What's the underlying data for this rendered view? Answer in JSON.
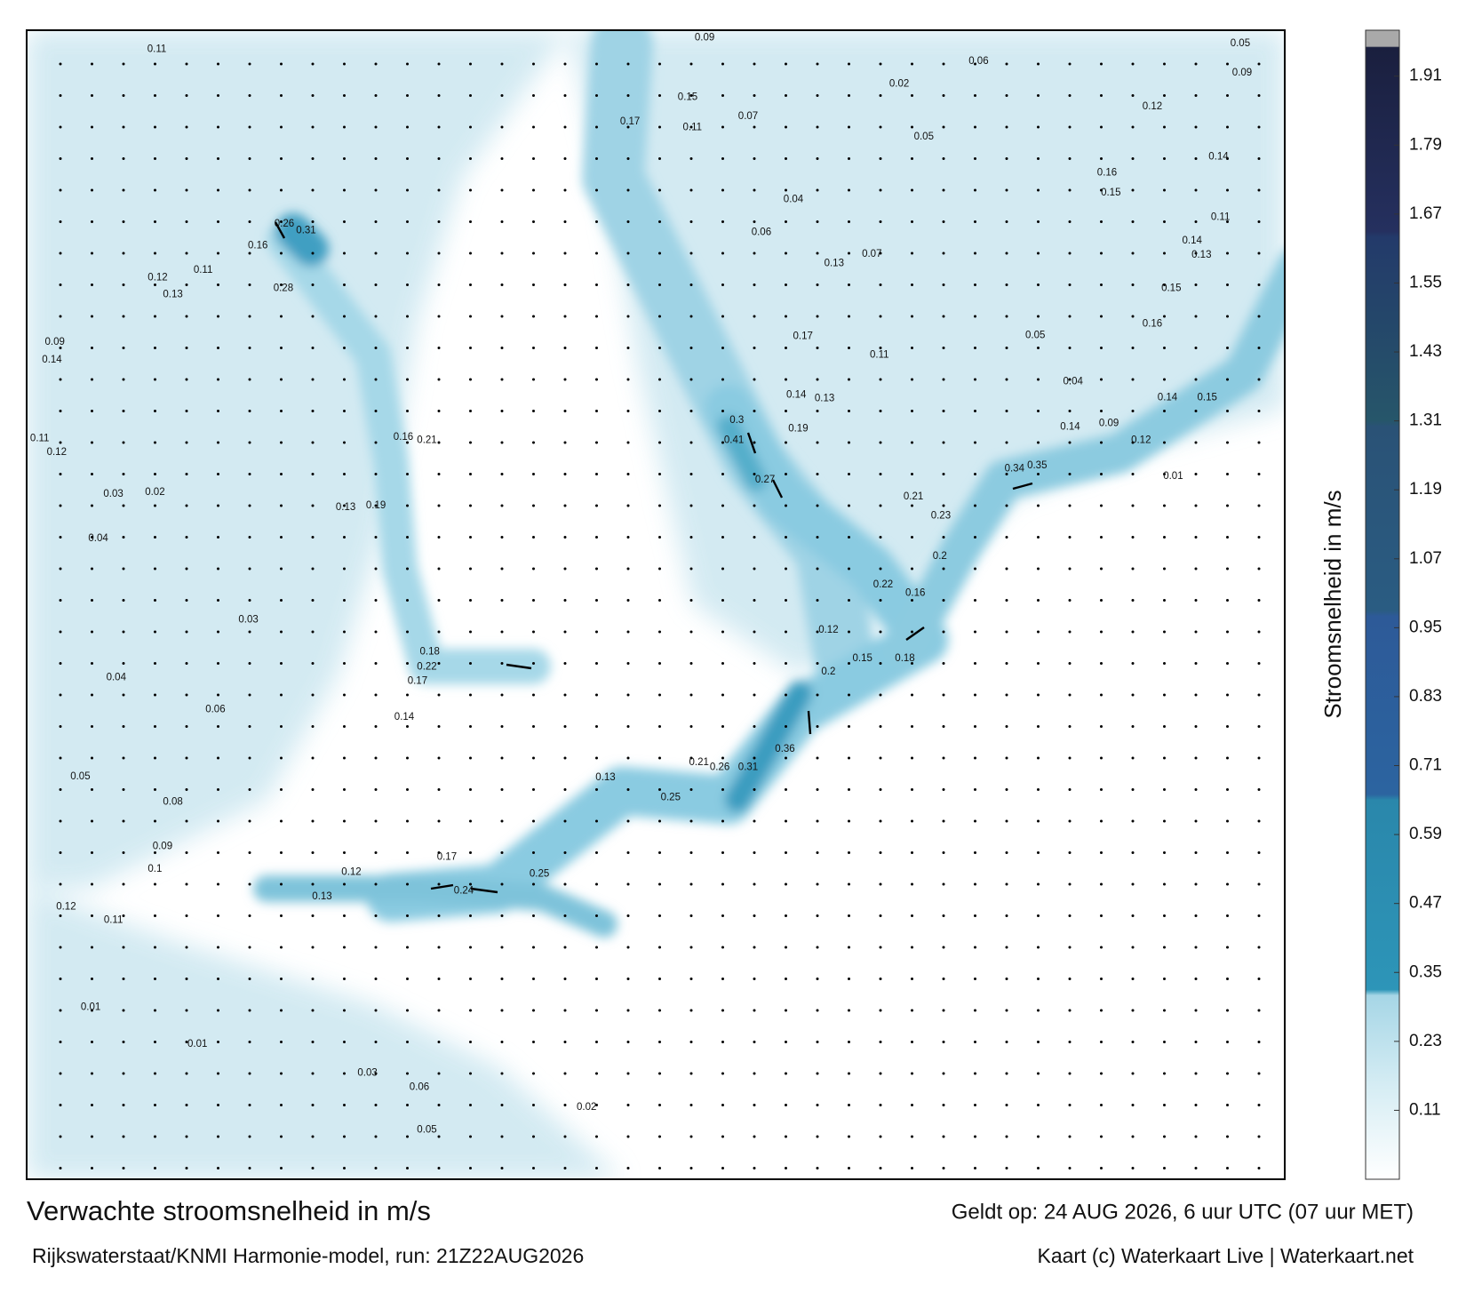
{
  "map": {
    "title": "Verwachte stroomsnelheid in m/s",
    "subtitle": "Rijkswaterstaat/KNMI Harmonie-model, run: 21Z22AUG2026",
    "valid_time": "Geldt op: 24 AUG 2026, 6 uur UTC (07 uur MET)",
    "credit": "Kaart (c) Waterkaart Live | Waterkaart.net",
    "colorbar": {
      "label": "Stroomsnelheid in m/s",
      "lim": [
        -0.01,
        1.99
      ],
      "ticks": [
        0.11,
        0.23,
        0.35,
        0.47,
        0.59,
        0.71,
        0.83,
        0.95,
        1.07,
        1.19,
        1.31,
        1.43,
        1.55,
        1.67,
        1.79,
        1.91
      ]
    },
    "current_labels": [
      0.11,
      0.09,
      0.06,
      0.15,
      0.11,
      0.17,
      0.02,
      0.07,
      0.05,
      0.04,
      0.06,
      0.13,
      0.07,
      0.17,
      0.11,
      0.14,
      0.13,
      0.19,
      0.3,
      0.41,
      0.27,
      0.21,
      0.23,
      0.34,
      0.35,
      0.2,
      0.22,
      0.16,
      0.12,
      0.15,
      0.18,
      0.2,
      0.36,
      0.31,
      0.26,
      0.21,
      0.25,
      0.24,
      0.25,
      0.13,
      0.22,
      0.18,
      0.17,
      0.14,
      0.16,
      0.21,
      0.19,
      0.13,
      0.26,
      0.31,
      0.16,
      0.28,
      0.12,
      0.13,
      0.11,
      0.09,
      0.14,
      0.11,
      0.12,
      0.03,
      0.02,
      0.04,
      0.03,
      0.04,
      0.06,
      0.05,
      0.08,
      0.09,
      0.1,
      0.12,
      0.11,
      0.13,
      0.12,
      0.17,
      0.01,
      0.01,
      0.03,
      0.05,
      0.06,
      0.02,
      0.16,
      0.15,
      0.14,
      0.13,
      0.15,
      0.16,
      0.14,
      0.15,
      0.14,
      0.12,
      0.01,
      0.04,
      0.05,
      0.09,
      0.12,
      0.14,
      0.11,
      0.05,
      0.09
    ]
  }
}
